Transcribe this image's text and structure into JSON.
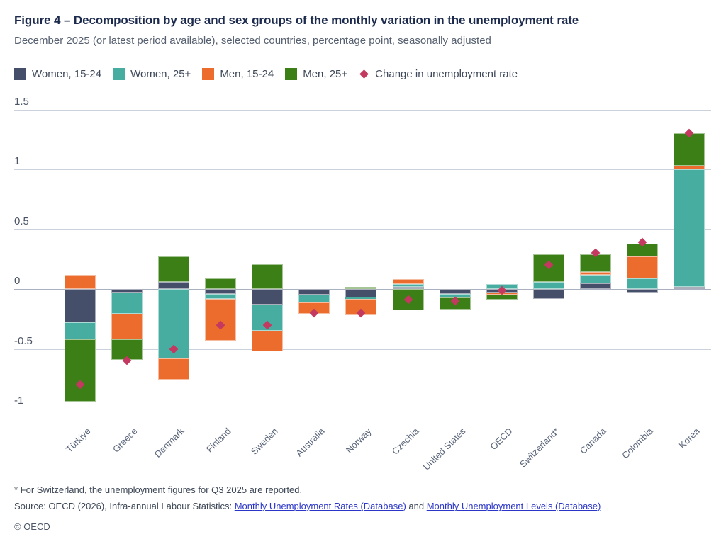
{
  "header": {
    "title": "Figure 4 – Decomposition by age and sex groups of the monthly variation in the unemployment rate",
    "subtitle": "December 2025 (or latest period available), selected countries, percentage point, seasonally adjusted"
  },
  "colors": {
    "women_15_24": "#454f69",
    "women_25plus": "#47ada1",
    "men_15_24": "#ec6c2d",
    "men_25plus": "#3b7f16",
    "marker": "#c3395f",
    "gridline": "#ccd2db",
    "zero_line": "#a9b1c0"
  },
  "chart_data": {
    "type": "bar",
    "stacked": true,
    "title": "Decomposition by age and sex groups of the monthly variation in the unemployment rate",
    "xlabel": "",
    "ylabel": "percentage point",
    "ylim": [
      -1.15,
      1.55
    ],
    "grid": true,
    "legend_position": "top",
    "yticks": [
      {
        "label": "1.5",
        "value": 1.5
      },
      {
        "label": "1",
        "value": 1.0
      },
      {
        "label": "0.5",
        "value": 0.5
      },
      {
        "label": "0",
        "value": 0.0
      },
      {
        "label": "-0.5",
        "value": -0.5
      },
      {
        "label": "-1",
        "value": -1.0
      }
    ],
    "categories": [
      "Türkiye",
      "Greece",
      "Denmark",
      "Finland",
      "Sweden",
      "Australia",
      "Norway",
      "Czechia",
      "United States",
      "OECD",
      "Switzerland*",
      "Canada",
      "Colombia",
      "Korea"
    ],
    "series": [
      {
        "name": "Women, 15-24",
        "color": "#454f69",
        "values": [
          -0.28,
          -0.03,
          0.06,
          -0.04,
          -0.13,
          -0.05,
          -0.07,
          0.02,
          -0.04,
          -0.03,
          -0.08,
          0.05,
          -0.03,
          0.02
        ]
      },
      {
        "name": "Women, 25+",
        "color": "#47ada1",
        "values": [
          -0.14,
          -0.18,
          -0.58,
          -0.04,
          -0.22,
          -0.06,
          -0.01,
          0.02,
          -0.03,
          0.04,
          0.06,
          0.07,
          0.09,
          0.98
        ]
      },
      {
        "name": "Men, 15-24",
        "color": "#ec6c2d",
        "values": [
          0.12,
          -0.21,
          -0.18,
          -0.35,
          -0.17,
          -0.1,
          -0.14,
          0.04,
          0.0,
          -0.02,
          0.0,
          0.02,
          0.18,
          0.03
        ]
      },
      {
        "name": "Men, 25+",
        "color": "#3b7f16",
        "values": [
          -0.52,
          -0.17,
          0.21,
          0.09,
          0.21,
          0.0,
          0.02,
          -0.18,
          -0.1,
          -0.04,
          0.23,
          0.15,
          0.11,
          0.27
        ]
      }
    ],
    "markers": {
      "name": "Change in unemployment rate",
      "color": "#c3395f",
      "values": [
        -0.8,
        -0.6,
        -0.5,
        -0.3,
        -0.3,
        -0.2,
        -0.2,
        -0.09,
        -0.1,
        -0.01,
        0.2,
        0.3,
        0.39,
        1.3
      ]
    }
  },
  "footnotes": {
    "asterisk_note": "* For Switzerland, the unemployment figures for Q3 2025 are reported.",
    "source_prefix": "Source: OECD (2026), Infra-annual Labour Statistics: ",
    "link_rates": "Monthly Unemployment Rates (Database)",
    "and_text": " and ",
    "link_levels": "Monthly Unemployment Levels (Database)",
    "copyright": "© OECD"
  }
}
